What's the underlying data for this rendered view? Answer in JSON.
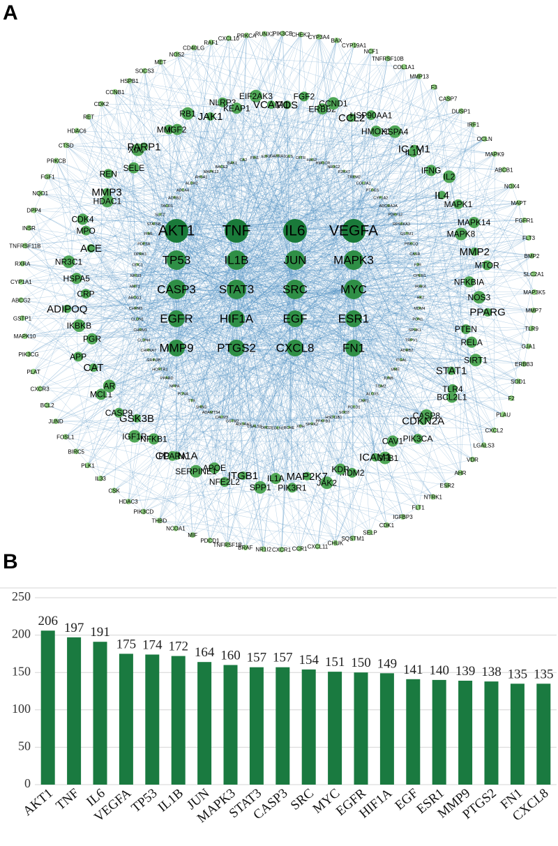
{
  "panels": {
    "a_label": "A",
    "b_label": "B"
  },
  "colors": {
    "edge": "#4a8ec2",
    "node_hub": "#1a7a3a",
    "node_core": "#2f8f46",
    "node_mid": "#4fa656",
    "node_outer": "#8dcc7d",
    "bar": "#1a7a40",
    "grid": "#d4d4d4"
  },
  "network": {
    "core": [
      [
        "AKT1",
        "TNF",
        "IL6",
        "VEGFA"
      ],
      [
        "TP53",
        "IL1B",
        "JUN",
        "MAPK3"
      ],
      [
        "CASP3",
        "STAT3",
        "SRC",
        "MYC"
      ],
      [
        "EGFR",
        "HIF1A",
        "EGF",
        "ESR1"
      ],
      [
        "MMP9",
        "PTGS2",
        "CXCL8",
        "FN1"
      ]
    ],
    "medium": [
      "FOS",
      "FGF2",
      "ERBB2",
      "CCND1",
      "CCL2",
      "HSP90AA1",
      "HMOX1",
      "HSPA4",
      "ICAM1",
      "IL10",
      "IFNG",
      "IL2",
      "IL4",
      "MAPK1",
      "MAPK14",
      "MAPK8",
      "MMP2",
      "MTOR",
      "NFKBIA",
      "NOS3",
      "PPARG",
      "PTEN",
      "RELA",
      "SIRT1",
      "STAT1",
      "TLR4",
      "BCL2L1",
      "CASP8",
      "CDKN2A",
      "PIK3CA",
      "CAV1",
      "TGFB1",
      "ICAM1",
      "MDM2",
      "KDR",
      "JAK2",
      "MAP2K7",
      "PIK3R1",
      "IL1A",
      "SPP1",
      "ITGB1",
      "NFE2L2",
      "APOE",
      "SERPINE1",
      "CDKN1A",
      "PPARA",
      "NFKB1",
      "IGF1R",
      "GSK3B",
      "CASP9",
      "MCL1",
      "AR",
      "CAT",
      "APP",
      "PGR",
      "IKBKB",
      "ADIPOQ",
      "CRP",
      "HSPA5",
      "NR3C1",
      "ACE",
      "MPO",
      "CDK4",
      "HDAC1",
      "MMP3",
      "REN",
      "SELE",
      "XIAP",
      "PARP1",
      "MMP1",
      "IGF2",
      "RB1",
      "JAK1",
      "NLRP3",
      "KEAP1",
      "EIF2AK3",
      "VCAM1"
    ],
    "outer": [
      "PIK3CB",
      "CHEK2",
      "CYP3A4",
      "BAX",
      "CYP19A1",
      "NCF1",
      "TNFRSF10B",
      "COL1A1",
      "MMP13",
      "F3",
      "CASP7",
      "DUSP1",
      "IRF1",
      "OCLN",
      "MAPK9",
      "ABCB1",
      "NOX4",
      "MAPT",
      "FGFR1",
      "FLT3",
      "BMP2",
      "SLC2A1",
      "MAP3K5",
      "MMP7",
      "TLR9",
      "GJA1",
      "ERBB3",
      "SOD1",
      "F2",
      "PLAU",
      "CXCL2",
      "LGALS3",
      "VDR",
      "AHR",
      "ESR2",
      "NTRK1",
      "FLT1",
      "IGFBP3",
      "CDK1",
      "SELP",
      "SQSTM1",
      "CHUK",
      "CXCL11",
      "CCR1",
      "CXCR1",
      "NR1I2",
      "BRAF",
      "TNFRSF1B",
      "PDCD1",
      "MIF",
      "NCOA1",
      "THBD",
      "PIK3CD",
      "HDAC3",
      "CSK",
      "IL33",
      "PLK1",
      "BIRC5",
      "FOSL1",
      "JUND",
      "BCL2",
      "CXCR3",
      "PLAT",
      "PIK3CG",
      "MAPK10",
      "GSTP1",
      "ABCG2",
      "CYP1A1",
      "RXRA",
      "TNFRSF11B",
      "INSR",
      "DPP4",
      "NQO1",
      "FGF1",
      "PRKCB",
      "CTSD",
      "HDAC6",
      "RET",
      "CDK2",
      "CCNB1",
      "HSPB1",
      "SOCS3",
      "MET",
      "NOS2",
      "CD40LG",
      "RAF1",
      "CXCL10",
      "PRKCA",
      "RUNX2"
    ],
    "inner_small": [
      "GABRA1",
      "GLS",
      "CFTR",
      "HAS2",
      "HMGCR",
      "NR3C2",
      "P2RX7",
      "TREM2",
      "COL2A1",
      "PTGES",
      "CYP1A2",
      "ADORA2A",
      "P2RY12",
      "RPS6KA3",
      "GSTM1",
      "PRKCQ",
      "CASR",
      "F2R",
      "CPER1",
      "IRAK4",
      "HK2",
      "MDM4",
      "PON1",
      "SPHK1",
      "TRPV1",
      "ADRB2",
      "ITGAL",
      "MME",
      "JUNB",
      "TGM2",
      "ALOX5",
      "CNR1",
      "POLD1",
      "SOD3",
      "HSD11B1",
      "PFKFB3",
      "SPHK2",
      "XDH",
      "BCHE",
      "EGLN1",
      "DRD2",
      "LGALS9",
      "ADORA1",
      "GSTM2",
      "CALM3",
      "ADAMTS4",
      "SHBG",
      "TTR",
      "PCNA",
      "NPPA",
      "PPARD",
      "HCRTR1",
      "GRIN2B",
      "CHRNA7",
      "CLDN4",
      "CHRM1",
      "CLDN1",
      "CHRM3",
      "ABCG1",
      "NMT1",
      "NR1I3",
      "ODC1",
      "OPRK1",
      "PDE5A",
      "PIM1",
      "STAT5B",
      "SLIT2",
      "TACR1",
      "ADRB3",
      "ABCA4",
      "ALDH2",
      "AHSA1",
      "MAPK12",
      "BACE2",
      "BAK1",
      "CA2",
      "PIN1",
      "E2F2"
    ]
  },
  "chart_data": {
    "type": "bar",
    "categories": [
      "AKT1",
      "TNF",
      "IL6",
      "VEGFA",
      "TP53",
      "IL1B",
      "JUN",
      "MAPK3",
      "STAT3",
      "CASP3",
      "SRC",
      "MYC",
      "EGFR",
      "HIF1A",
      "EGF",
      "ESR1",
      "MMP9",
      "PTGS2",
      "FN1",
      "CXCL8"
    ],
    "values": [
      206,
      197,
      191,
      175,
      174,
      172,
      164,
      160,
      157,
      157,
      154,
      151,
      150,
      149,
      141,
      140,
      139,
      138,
      135,
      135
    ],
    "yticks": [
      "0",
      "50",
      "100",
      "150",
      "200",
      "250"
    ],
    "ylim": [
      0,
      250
    ],
    "grid": true
  }
}
